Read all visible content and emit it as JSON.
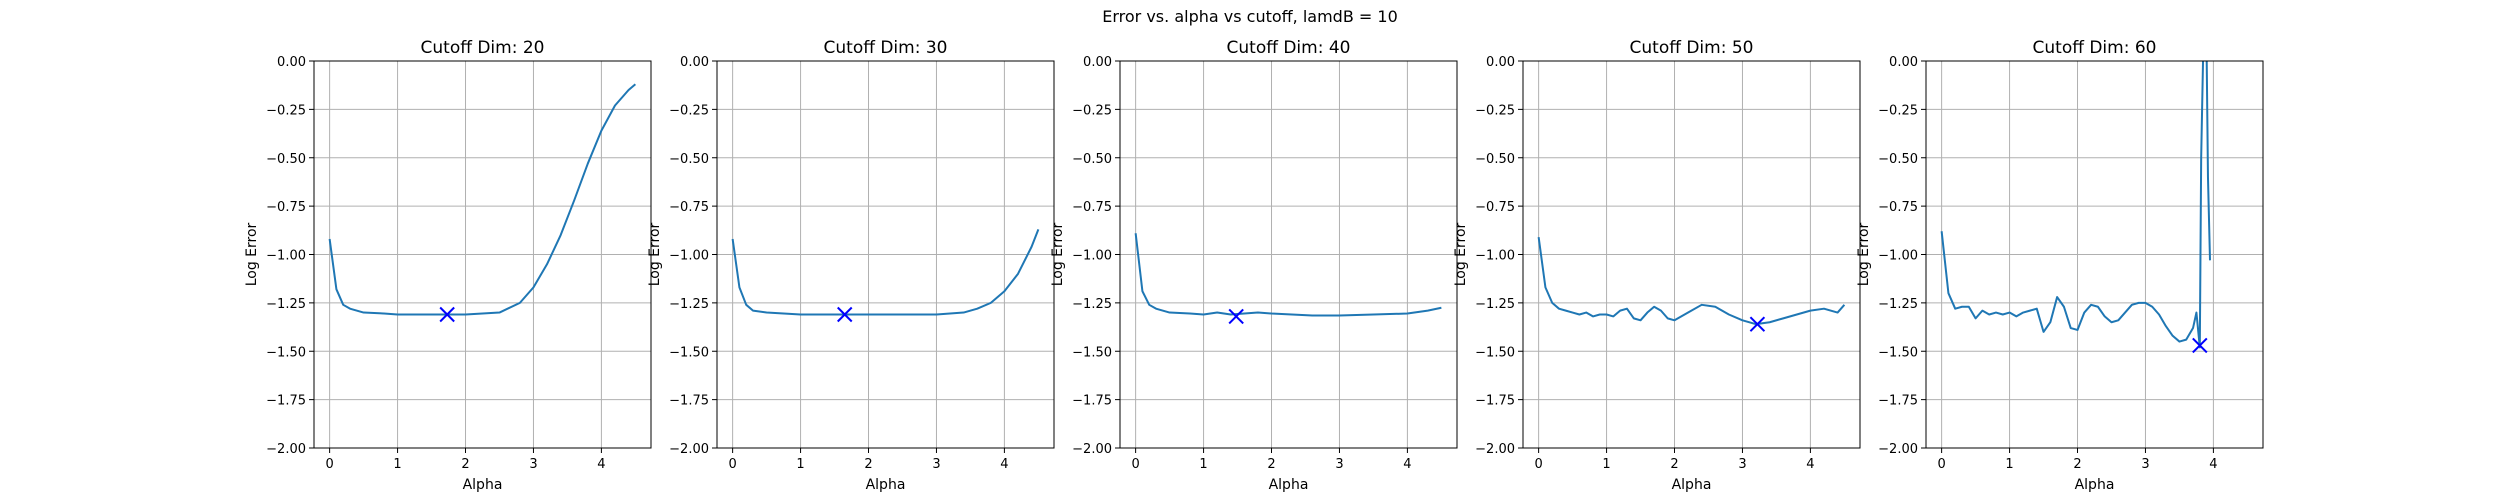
{
  "figure": {
    "suptitle": "Error vs. alpha vs cutoff, lamdB = 10"
  },
  "chart_data": [
    {
      "type": "line",
      "title": "Cutoff Dim: 20",
      "xlabel": "Alpha",
      "ylabel": "Log Error",
      "xlim": [
        -0.23,
        4.73
      ],
      "ylim": [
        -2.0,
        0.0
      ],
      "xticks": [
        0,
        1,
        2,
        3,
        4
      ],
      "yticks": [
        -2.0,
        -1.75,
        -1.5,
        -1.25,
        -1.0,
        -0.75,
        -0.5,
        -0.25,
        0.0
      ],
      "grid": true,
      "line_color": "#1f77b4",
      "marker_color": "#0000ff",
      "series": [
        {
          "x": [
            0.0,
            0.1,
            0.2,
            0.3,
            0.5,
            0.8,
            1.0,
            1.5,
            2.0,
            2.5,
            2.8,
            3.0,
            3.2,
            3.4,
            3.6,
            3.8,
            4.0,
            4.2,
            4.4,
            4.5
          ],
          "y": [
            -0.92,
            -1.18,
            -1.26,
            -1.28,
            -1.3,
            -1.305,
            -1.31,
            -1.31,
            -1.31,
            -1.3,
            -1.25,
            -1.17,
            -1.05,
            -0.9,
            -0.72,
            -0.53,
            -0.36,
            -0.23,
            -0.15,
            -0.12
          ]
        }
      ],
      "marker": {
        "x": 1.73,
        "y": -1.31,
        "symbol": "x"
      }
    },
    {
      "type": "line",
      "title": "Cutoff Dim: 30",
      "xlabel": "Alpha",
      "ylabel": "Log Error",
      "xlim": [
        -0.23,
        4.73
      ],
      "ylim": [
        -2.0,
        0.0
      ],
      "xticks": [
        0,
        1,
        2,
        3,
        4
      ],
      "yticks": [
        -2.0,
        -1.75,
        -1.5,
        -1.25,
        -1.0,
        -0.75,
        -0.5,
        -0.25,
        0.0
      ],
      "grid": true,
      "line_color": "#1f77b4",
      "marker_color": "#0000ff",
      "series": [
        {
          "x": [
            0.0,
            0.1,
            0.2,
            0.3,
            0.5,
            1.0,
            1.5,
            2.0,
            2.5,
            3.0,
            3.4,
            3.6,
            3.8,
            4.0,
            4.2,
            4.4,
            4.5
          ],
          "y": [
            -0.92,
            -1.17,
            -1.26,
            -1.29,
            -1.3,
            -1.31,
            -1.31,
            -1.31,
            -1.31,
            -1.31,
            -1.3,
            -1.28,
            -1.25,
            -1.19,
            -1.1,
            -0.96,
            -0.87
          ]
        }
      ],
      "marker": {
        "x": 1.65,
        "y": -1.31,
        "symbol": "x"
      }
    },
    {
      "type": "line",
      "title": "Cutoff Dim: 40",
      "xlabel": "Alpha",
      "ylabel": "Log Error",
      "xlim": [
        -0.23,
        4.73
      ],
      "ylim": [
        -2.0,
        0.0
      ],
      "xticks": [
        0,
        1,
        2,
        3,
        4
      ],
      "yticks": [
        -2.0,
        -1.75,
        -1.5,
        -1.25,
        -1.0,
        -0.75,
        -0.5,
        -0.25,
        0.0
      ],
      "grid": true,
      "line_color": "#1f77b4",
      "marker_color": "#0000ff",
      "series": [
        {
          "x": [
            0.0,
            0.1,
            0.2,
            0.3,
            0.5,
            0.8,
            1.0,
            1.2,
            1.4,
            1.6,
            1.8,
            2.0,
            2.3,
            2.6,
            3.0,
            3.5,
            4.0,
            4.3,
            4.5
          ],
          "y": [
            -0.89,
            -1.19,
            -1.26,
            -1.28,
            -1.3,
            -1.305,
            -1.31,
            -1.3,
            -1.31,
            -1.305,
            -1.3,
            -1.305,
            -1.31,
            -1.315,
            -1.315,
            -1.31,
            -1.305,
            -1.29,
            -1.275
          ]
        }
      ],
      "marker": {
        "x": 1.48,
        "y": -1.32,
        "symbol": "x"
      }
    },
    {
      "type": "line",
      "title": "Cutoff Dim: 50",
      "xlabel": "Alpha",
      "ylabel": "Log Error",
      "xlim": [
        -0.23,
        4.73
      ],
      "ylim": [
        -2.0,
        0.0
      ],
      "xticks": [
        0,
        1,
        2,
        3,
        4
      ],
      "yticks": [
        -2.0,
        -1.75,
        -1.5,
        -1.25,
        -1.0,
        -0.75,
        -0.5,
        -0.25,
        0.0
      ],
      "grid": true,
      "line_color": "#1f77b4",
      "marker_color": "#0000ff",
      "series": [
        {
          "x": [
            0.0,
            0.1,
            0.2,
            0.3,
            0.4,
            0.5,
            0.6,
            0.7,
            0.8,
            0.9,
            1.0,
            1.1,
            1.2,
            1.3,
            1.4,
            1.5,
            1.6,
            1.7,
            1.8,
            1.9,
            2.0,
            2.2,
            2.4,
            2.6,
            2.8,
            3.0,
            3.2,
            3.4,
            3.6,
            3.8,
            4.0,
            4.2,
            4.4,
            4.5
          ],
          "y": [
            -0.91,
            -1.17,
            -1.25,
            -1.28,
            -1.29,
            -1.3,
            -1.31,
            -1.3,
            -1.32,
            -1.31,
            -1.31,
            -1.32,
            -1.29,
            -1.28,
            -1.33,
            -1.34,
            -1.3,
            -1.27,
            -1.29,
            -1.33,
            -1.34,
            -1.3,
            -1.26,
            -1.27,
            -1.31,
            -1.34,
            -1.36,
            -1.35,
            -1.33,
            -1.31,
            -1.29,
            -1.28,
            -1.3,
            -1.26
          ]
        }
      ],
      "marker": {
        "x": 3.22,
        "y": -1.36,
        "symbol": "x"
      }
    },
    {
      "type": "line",
      "title": "Cutoff Dim: 60",
      "xlabel": "Alpha",
      "ylabel": "Log Error",
      "xlim": [
        -0.23,
        4.73
      ],
      "ylim": [
        -2.0,
        0.0
      ],
      "xticks": [
        0,
        1,
        2,
        3,
        4
      ],
      "yticks": [
        -2.0,
        -1.75,
        -1.5,
        -1.25,
        -1.0,
        -0.75,
        -0.5,
        -0.25,
        0.0
      ],
      "grid": true,
      "line_color": "#1f77b4",
      "marker_color": "#0000ff",
      "series": [
        {
          "x": [
            0.0,
            0.1,
            0.2,
            0.3,
            0.4,
            0.5,
            0.6,
            0.7,
            0.8,
            0.9,
            1.0,
            1.1,
            1.2,
            1.3,
            1.4,
            1.5,
            1.6,
            1.7,
            1.8,
            1.9,
            2.0,
            2.1,
            2.2,
            2.3,
            2.4,
            2.5,
            2.6,
            2.7,
            2.8,
            2.9,
            3.0,
            3.1,
            3.2,
            3.3,
            3.4,
            3.5,
            3.6,
            3.7,
            3.75,
            3.8,
            3.82,
            3.85,
            3.9,
            3.92,
            3.95
          ],
          "y": [
            -0.88,
            -1.2,
            -1.28,
            -1.27,
            -1.27,
            -1.33,
            -1.29,
            -1.31,
            -1.3,
            -1.31,
            -1.3,
            -1.32,
            -1.3,
            -1.29,
            -1.28,
            -1.4,
            -1.35,
            -1.22,
            -1.27,
            -1.38,
            -1.39,
            -1.3,
            -1.26,
            -1.27,
            -1.32,
            -1.35,
            -1.34,
            -1.3,
            -1.26,
            -1.25,
            -1.25,
            -1.27,
            -1.31,
            -1.37,
            -1.42,
            -1.45,
            -1.44,
            -1.38,
            -1.3,
            -1.48,
            -0.5,
            0.05,
            0.05,
            -0.6,
            -1.03
          ]
        }
      ],
      "marker": {
        "x": 3.8,
        "y": -1.47,
        "symbol": "x"
      }
    }
  ]
}
